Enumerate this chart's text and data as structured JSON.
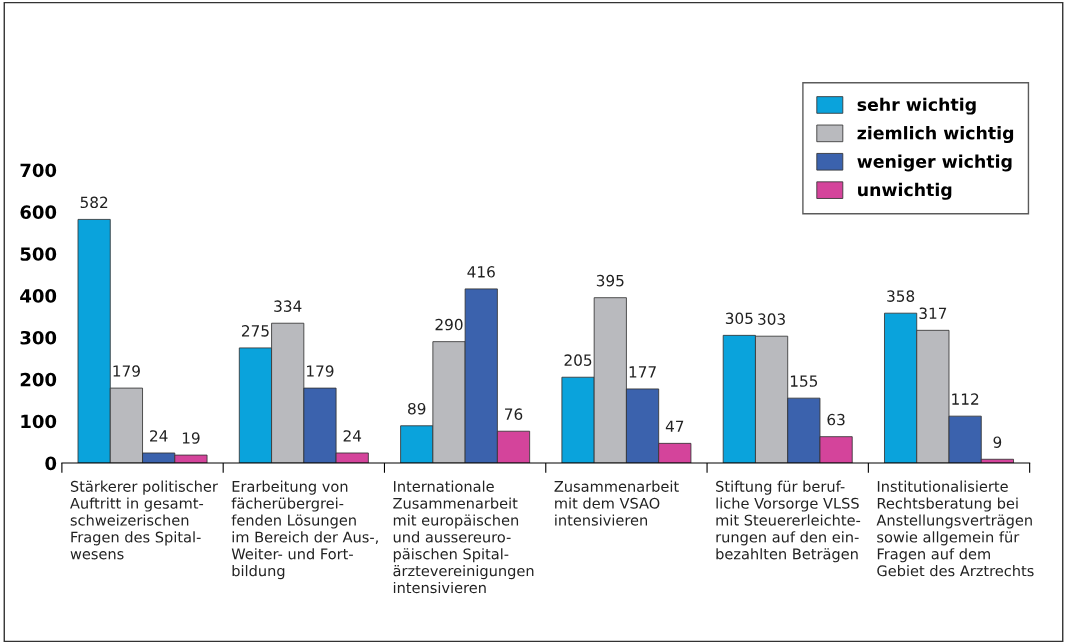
{
  "chart_data": {
    "type": "bar",
    "categories": [
      "Stärkerer politischer\nAuftritt in gesamt-\nschweizerischen\nFragen des Spital-\nwesens",
      "Erarbeitung von\nfächerübergrei-\nfenden Lösungen\nim Bereich der Aus-,\nWeiter- und Fort-\nbildung",
      "Internationale\nZusammenarbeit\nmit europäischen\nund aussereuro-\npäischen Spital-\närztevereinigungen\nintensivieren",
      "Zusammenarbeit\nmit dem VSAO\nintensivieren",
      "Stiftung für beruf-\nliche Vorsorge VLSS\nmit Steuererleichte-\nrungen auf den ein-\nbezahlten Beträgen",
      "Institutionalisierte\nRechtsberatung bei\nAnstellungsverträgen\nsowie allgemein für\nFragen auf dem\nGebiet des Arztrechts"
    ],
    "series": [
      {
        "name": "sehr wichtig",
        "color": "#0aa3dc",
        "values": [
          582,
          275,
          89,
          205,
          305,
          358
        ]
      },
      {
        "name": "ziemlich wichtig",
        "color": "#b9babe",
        "values": [
          179,
          334,
          290,
          395,
          303,
          317
        ]
      },
      {
        "name": "weniger wichtig",
        "color": "#3b62ad",
        "values": [
          24,
          179,
          416,
          177,
          155,
          112
        ]
      },
      {
        "name": "unwichtig",
        "color": "#d4449b",
        "values": [
          19,
          24,
          76,
          47,
          63,
          9
        ]
      }
    ],
    "ylim": [
      0,
      700
    ],
    "yticks": [
      0,
      100,
      200,
      300,
      400,
      500,
      600,
      700
    ],
    "data_labels": true,
    "legend": "top right",
    "grid": false
  }
}
